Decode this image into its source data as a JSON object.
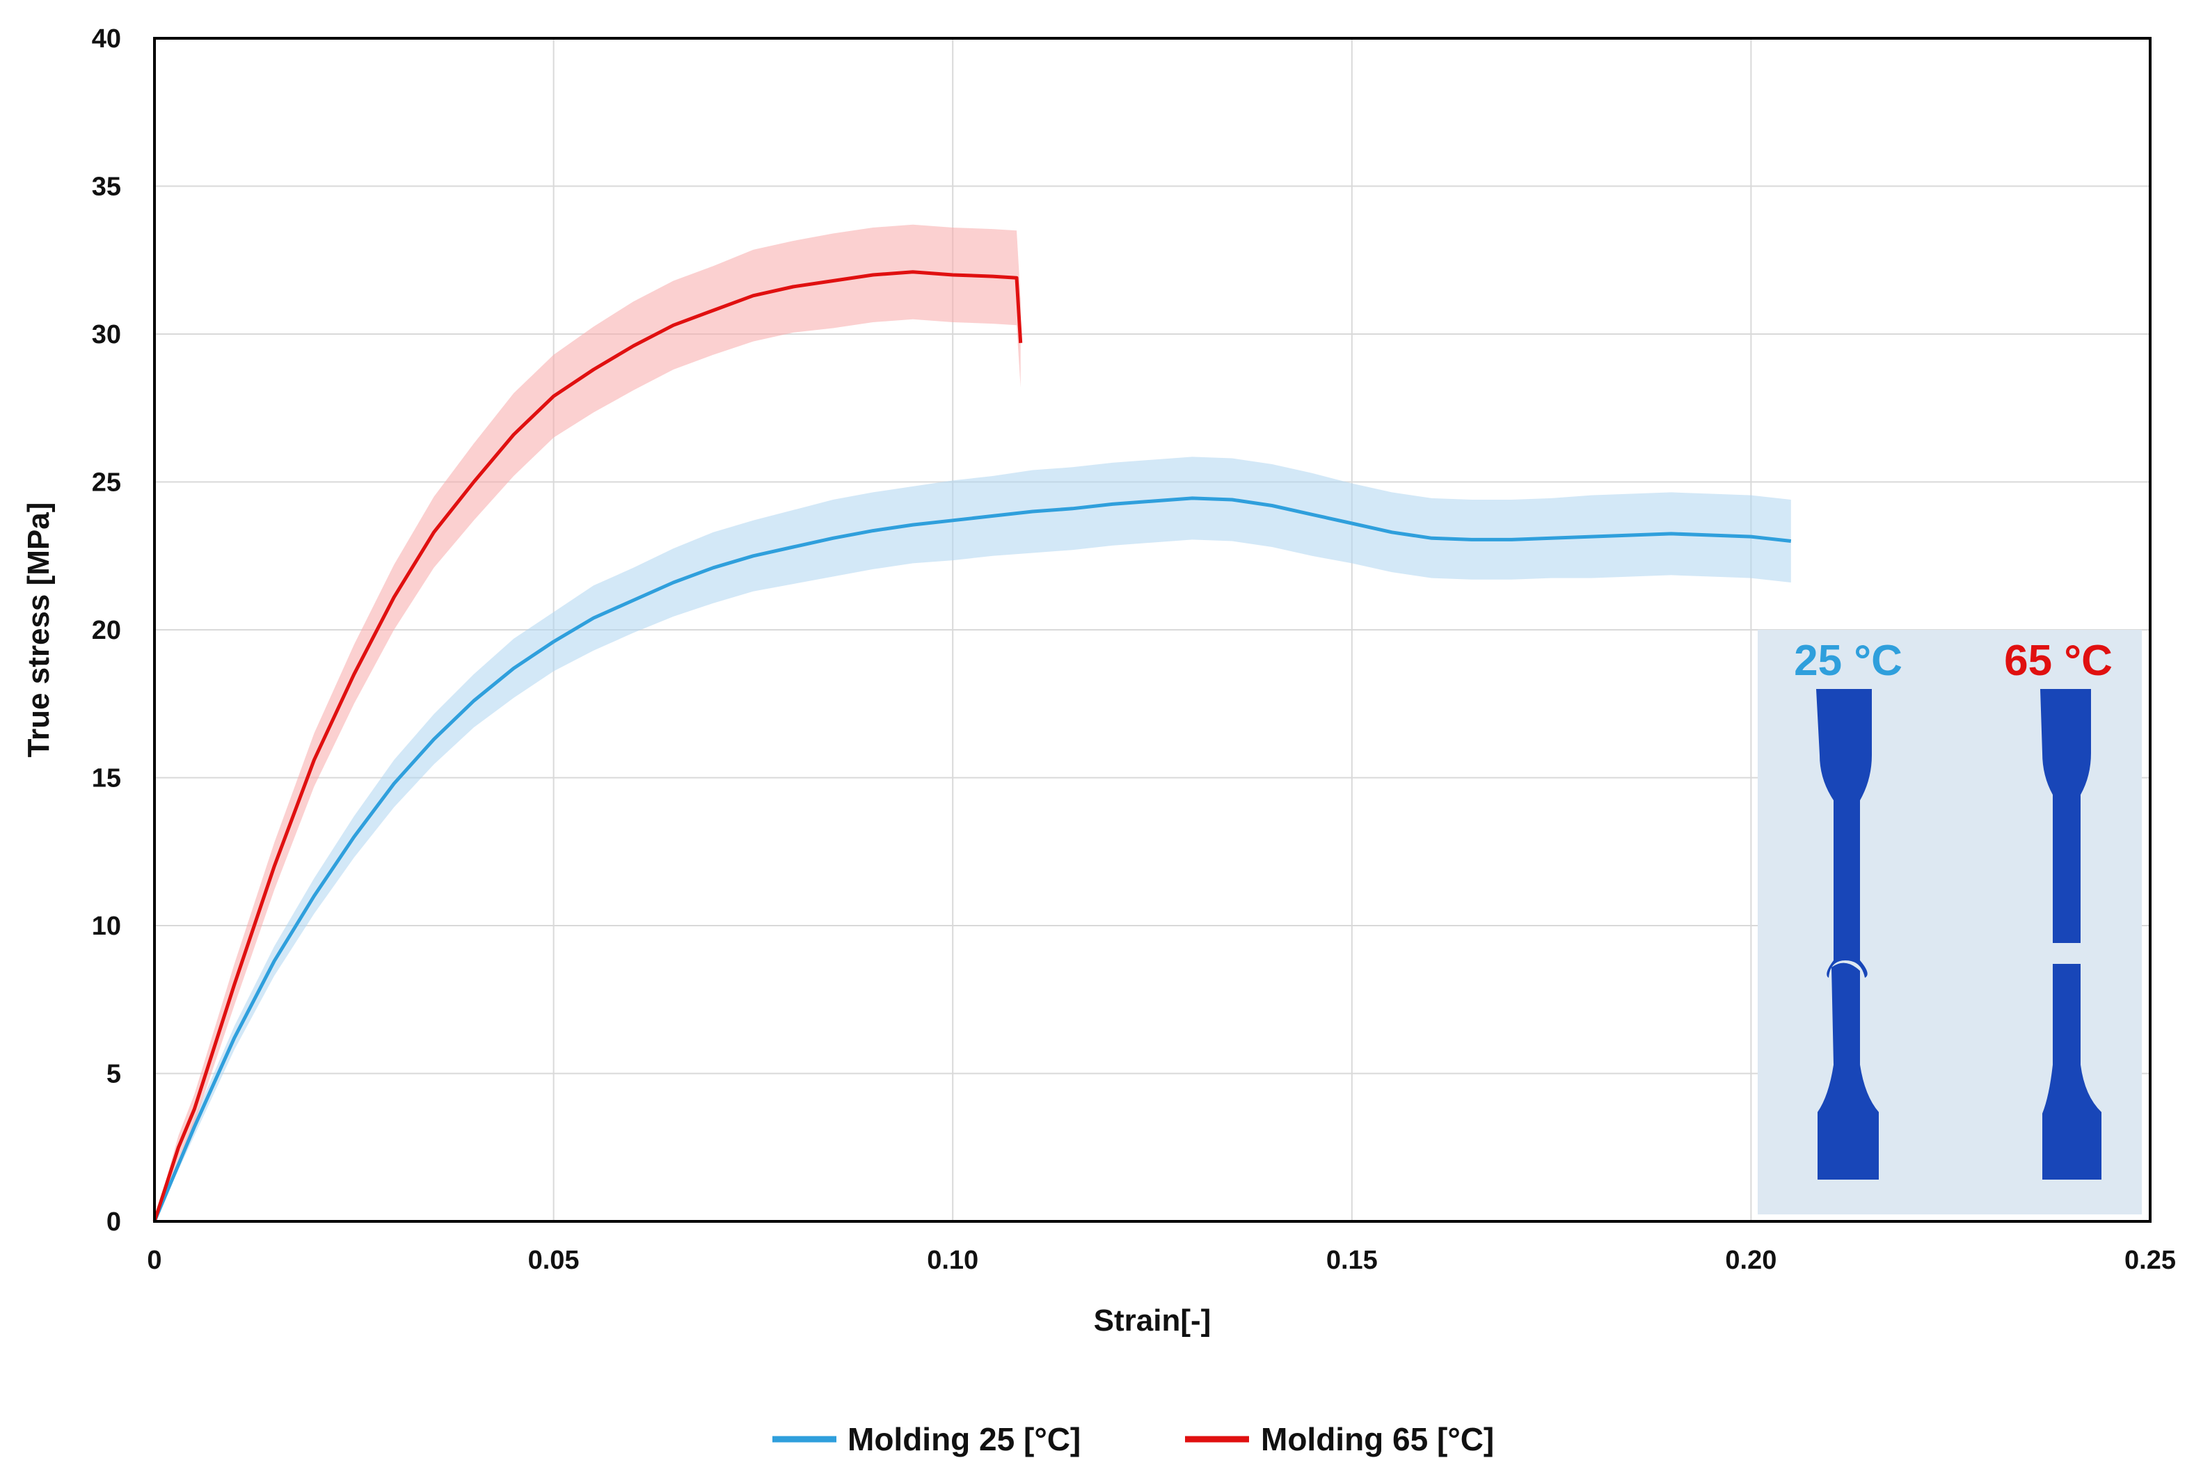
{
  "colors": {
    "series_25": "#2f9fdc",
    "series_65": "#e01010",
    "band_25": "#aed6f1",
    "band_65": "#f7a9a9",
    "grid": "#d9d9d9",
    "axis": "#000000",
    "inset_background": "#dde8f2",
    "specimen_blue": "#1846b8"
  },
  "chart_data": {
    "type": "line",
    "xlabel": "Strain[-]",
    "ylabel": "True stress [MPa]",
    "xlim": [
      0,
      0.25
    ],
    "ylim": [
      0,
      40
    ],
    "x_ticks": [
      0,
      0.05,
      0.1,
      0.15,
      0.2,
      0.25
    ],
    "x_tick_labels": [
      "0",
      "0.05",
      "0.10",
      "0.15",
      "0.20",
      "0.25"
    ],
    "y_ticks": [
      0,
      5,
      10,
      15,
      20,
      25,
      30,
      35,
      40
    ],
    "y_tick_labels": [
      "0",
      "5",
      "10",
      "15",
      "20",
      "25",
      "30",
      "35",
      "40"
    ],
    "grid": true,
    "legend_position": "bottom-center",
    "series": [
      {
        "name": "Molding 25 [°C]",
        "color_key": "series_25",
        "x": [
          0,
          0.005,
          0.01,
          0.015,
          0.02,
          0.025,
          0.03,
          0.035,
          0.04,
          0.045,
          0.05,
          0.055,
          0.06,
          0.065,
          0.07,
          0.075,
          0.08,
          0.085,
          0.09,
          0.095,
          0.1,
          0.105,
          0.11,
          0.115,
          0.12,
          0.125,
          0.13,
          0.135,
          0.14,
          0.145,
          0.15,
          0.155,
          0.16,
          0.165,
          0.17,
          0.175,
          0.18,
          0.185,
          0.19,
          0.195,
          0.2,
          0.205
        ],
        "y": [
          0,
          3.2,
          6.2,
          8.8,
          11.0,
          13.0,
          14.8,
          16.3,
          17.6,
          18.7,
          19.6,
          20.4,
          21.0,
          21.6,
          22.1,
          22.5,
          22.8,
          23.1,
          23.35,
          23.55,
          23.7,
          23.85,
          24.0,
          24.1,
          24.25,
          24.35,
          24.45,
          24.4,
          24.2,
          23.9,
          23.6,
          23.3,
          23.1,
          23.05,
          23.05,
          23.1,
          23.15,
          23.2,
          23.25,
          23.2,
          23.15,
          23.0
        ],
        "error": [
          0,
          0.3,
          0.4,
          0.5,
          0.6,
          0.7,
          0.8,
          0.85,
          0.9,
          1.0,
          1.0,
          1.1,
          1.1,
          1.15,
          1.2,
          1.2,
          1.25,
          1.3,
          1.3,
          1.3,
          1.35,
          1.35,
          1.4,
          1.4,
          1.4,
          1.4,
          1.4,
          1.4,
          1.4,
          1.4,
          1.35,
          1.35,
          1.35,
          1.35,
          1.35,
          1.35,
          1.4,
          1.4,
          1.4,
          1.4,
          1.4,
          1.4
        ]
      },
      {
        "name": "Molding 65 [°C]",
        "color_key": "series_65",
        "x": [
          0,
          0.003,
          0.005,
          0.01,
          0.015,
          0.02,
          0.025,
          0.03,
          0.035,
          0.04,
          0.045,
          0.05,
          0.055,
          0.06,
          0.065,
          0.07,
          0.075,
          0.08,
          0.085,
          0.09,
          0.095,
          0.1,
          0.105,
          0.108,
          0.1085
        ],
        "y": [
          0,
          2.5,
          3.8,
          8.0,
          12.0,
          15.6,
          18.5,
          21.1,
          23.3,
          25.0,
          26.6,
          27.9,
          28.8,
          29.6,
          30.3,
          30.8,
          31.3,
          31.6,
          31.8,
          32.0,
          32.1,
          32.0,
          31.95,
          31.9,
          29.7
        ],
        "error": [
          0,
          0.4,
          0.5,
          0.7,
          0.8,
          0.9,
          1.0,
          1.1,
          1.2,
          1.3,
          1.4,
          1.4,
          1.45,
          1.5,
          1.5,
          1.5,
          1.55,
          1.55,
          1.6,
          1.6,
          1.6,
          1.6,
          1.6,
          1.6,
          1.5
        ]
      }
    ],
    "inset": {
      "labels": [
        "25 °C",
        "65 °C"
      ],
      "label_colors": [
        "series_25",
        "series_65"
      ]
    }
  }
}
